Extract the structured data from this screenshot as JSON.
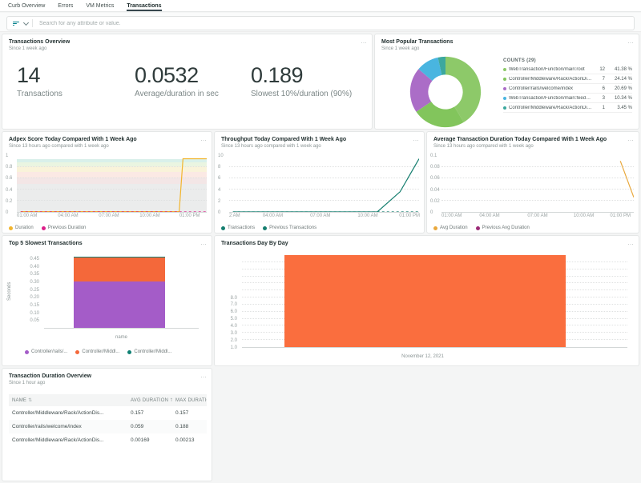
{
  "ui": {
    "menu_icon": "…"
  },
  "tabs": {
    "items": [
      {
        "label": "Curb Overview",
        "active": false
      },
      {
        "label": "Errors",
        "active": false
      },
      {
        "label": "VM Metrics",
        "active": false
      },
      {
        "label": "Transactions",
        "active": true
      }
    ]
  },
  "search": {
    "placeholder": "Search for any attribute or value."
  },
  "panels": {
    "overview": {
      "title": "Transactions Overview",
      "subtitle": "Since 1 week ago",
      "billboards": [
        {
          "value": "14",
          "label": "Transactions"
        },
        {
          "value": "0.0532",
          "label": "Average/duration in sec"
        },
        {
          "value": "0.189",
          "label": "Slowest 10%/duration (90%)"
        }
      ]
    },
    "popular": {
      "title": "Most Popular Transactions",
      "subtitle": "Since 1 week ago"
    },
    "apdex": {
      "title": "Adpex Score Today Compared With 1 Week Ago",
      "subtitle": "Since 13 hours ago compared with 1 week ago"
    },
    "throughput": {
      "title": "Throughput Today Compared With 1 Week Ago",
      "subtitle": "Since 13 hours ago compared with 1 week ago"
    },
    "avgdur": {
      "title": "Average Transaction Duration Today Compared With 1 Week Ago",
      "subtitle": "Since 13 hours ago compared with 1 week ago"
    },
    "top5": {
      "title": "Top 5 Slowest Transactions"
    },
    "daybyday": {
      "title": "Transactions Day By Day"
    },
    "table": {
      "title": "Transaction Duration Overview",
      "subtitle": "Since 1 hour ago"
    }
  },
  "chart_data": [
    {
      "id": "popular",
      "type": "pie",
      "title": "Most Popular Transactions",
      "legend_header": "COUNTS (29)",
      "inner_ratio": 0.49,
      "slices": [
        {
          "label": "WebTransaction/Function/main:root",
          "count": "12",
          "pct": "41.38 %",
          "value": 41.38,
          "color": "#8dc969"
        },
        {
          "label": "Controller/Middleware/Rack/ActionDis...",
          "count": "7",
          "pct": "24.14 %",
          "value": 24.14,
          "color": "#82c55c"
        },
        {
          "label": "Controller/rails/welcome/index",
          "count": "6",
          "pct": "20.69 %",
          "value": 20.69,
          "color": "#ab6dc7"
        },
        {
          "label": "WebTransaction/Function/main:feedpa...",
          "count": "3",
          "pct": "10.34 %",
          "value": 10.34,
          "color": "#49b5e0"
        },
        {
          "label": "Controller/Middleware/Rack/ActionDis...",
          "count": "1",
          "pct": "3.45 %",
          "value": 3.45,
          "color": "#3ca89e"
        }
      ]
    },
    {
      "id": "apdex",
      "type": "line",
      "title": "Adpex Score Today Compared With 1 Week Ago",
      "ylim": [
        0,
        1
      ],
      "yticks": [
        0,
        0.2,
        0.4,
        0.6,
        0.8,
        1
      ],
      "ytick_labels": [
        "0",
        "0.2",
        "0.4",
        "0.6",
        "0.8",
        "1"
      ],
      "x_ticks": [
        {
          "pos": 0.0,
          "label": "01:00 AM"
        },
        {
          "pos": 0.27,
          "label": "04:00 AM"
        },
        {
          "pos": 0.485,
          "label": "07:00 AM"
        },
        {
          "pos": 0.7,
          "label": "10:00 AM"
        },
        {
          "pos": 0.91,
          "label": "01:00 PM"
        }
      ],
      "bands": [
        {
          "from": 0.0,
          "to": 0.5,
          "color": "#ebecec"
        },
        {
          "from": 0.5,
          "to": 0.62,
          "color": "#f3e6e6"
        },
        {
          "from": 0.62,
          "to": 0.72,
          "color": "#fbe9e4"
        },
        {
          "from": 0.72,
          "to": 0.82,
          "color": "#f9f3da"
        },
        {
          "from": 0.82,
          "to": 0.89,
          "color": "#eaf5e1"
        },
        {
          "from": 0.89,
          "to": 0.95,
          "color": "#d9f0ea"
        }
      ],
      "series": [
        {
          "name": "Duration",
          "color": "#f2b52e",
          "dash": false,
          "points": [
            [
              0.02,
              0.005
            ],
            [
              0.855,
              0.005
            ],
            [
              0.875,
              0.95
            ],
            [
              1,
              0.95
            ]
          ]
        },
        {
          "name": "Previous Duration",
          "color": "#dd1e8a",
          "dash": true,
          "points": [
            [
              0.02,
              0
            ],
            [
              1,
              0
            ]
          ]
        }
      ]
    },
    {
      "id": "throughput",
      "type": "line",
      "title": "Throughput Today Compared With 1 Week Ago",
      "ylim": [
        0,
        10
      ],
      "yticks": [
        0,
        2,
        4,
        6,
        8,
        10
      ],
      "ytick_labels": [
        "0",
        "2",
        "4",
        "6",
        "8",
        "10"
      ],
      "x_ticks": [
        {
          "pos": 0.0,
          "label": "2 AM"
        },
        {
          "pos": 0.23,
          "label": "04:00 AM"
        },
        {
          "pos": 0.48,
          "label": "07:00 AM"
        },
        {
          "pos": 0.73,
          "label": "10:00 AM"
        },
        {
          "pos": 0.95,
          "label": "01:00 PM"
        }
      ],
      "bands": [],
      "series": [
        {
          "name": "Transactions",
          "color": "#157e6f",
          "dash": false,
          "points": [
            [
              0.02,
              0
            ],
            [
              0.78,
              0
            ],
            [
              0.9,
              3.6
            ],
            [
              1,
              9.5
            ]
          ]
        },
        {
          "name": "Previous Transactions",
          "color": "#157e6f",
          "dash": true,
          "points": [
            [
              0.02,
              0
            ],
            [
              1,
              0
            ]
          ]
        }
      ]
    },
    {
      "id": "avgdur",
      "type": "line",
      "title": "Average Transaction Duration Today Compared With 1 Week Ago",
      "ylim": [
        0,
        0.1
      ],
      "yticks": [
        0,
        0.02,
        0.04,
        0.06,
        0.08,
        0.1
      ],
      "ytick_labels": [
        "0",
        "0.02",
        "0.04",
        "0.06",
        "0.08",
        "0.1"
      ],
      "x_ticks": [
        {
          "pos": 0.0,
          "label": "01:00 AM"
        },
        {
          "pos": 0.25,
          "label": "04:00 AM"
        },
        {
          "pos": 0.5,
          "label": "07:00 AM"
        },
        {
          "pos": 0.74,
          "label": "10:00 AM"
        },
        {
          "pos": 0.93,
          "label": "01:00 PM"
        }
      ],
      "bands": [],
      "series": [
        {
          "name": "Avg Duration",
          "color": "#e9a83c",
          "dash": false,
          "points": [
            [
              0.93,
              0.091
            ],
            [
              1,
              0.026
            ]
          ]
        },
        {
          "name": "Previous Avg Duration",
          "color": "#9c2b77",
          "dash": true,
          "points": []
        }
      ]
    },
    {
      "id": "top5",
      "type": "bar",
      "stacked": true,
      "title": "Top 5 Slowest Transactions",
      "ylabel": "Seconds",
      "xlabel": "name",
      "ylim": [
        0,
        0.4653
      ],
      "yticks": [
        0.05,
        0.1,
        0.15,
        0.2,
        0.25,
        0.3,
        0.35,
        0.4,
        0.45
      ],
      "ytick_labels": [
        "0.05",
        "0.10",
        "0.15",
        "0.20",
        "0.25",
        "0.30",
        "0.35",
        "0.40",
        "0.45"
      ],
      "bar_span": [
        0.19,
        0.78
      ],
      "segments": [
        {
          "name": "Controller/rails/...",
          "value": 0.305,
          "color": "#a45cc8"
        },
        {
          "name": "Controller/Middl...",
          "value": 0.155,
          "color": "#f4683a"
        },
        {
          "name": "Controller/Middl...",
          "value": 0.0053,
          "color": "#108174"
        }
      ]
    },
    {
      "id": "daybyday",
      "type": "bar",
      "title": "Transactions Day By Day",
      "categories": [
        "November 12, 2021"
      ],
      "values": [
        14
      ],
      "color": "#fa6e3e",
      "ylim": [
        1,
        14
      ],
      "grid_step": 1,
      "ytick_labels": [
        "1.0",
        "2.0",
        "3.0",
        "4.0",
        "5.0",
        "6.0",
        "7.0",
        "8.0"
      ],
      "bar_span": [
        0.11,
        0.84
      ],
      "xlabel_pos": 0.47
    },
    {
      "id": "duration_table",
      "type": "table",
      "title": "Transaction Duration Overview",
      "columns": [
        "NAME",
        "AVG DURATION",
        "MAX DURATION",
        "MIN DURATION"
      ],
      "rows": [
        [
          "Controller/Middleware/Rack/ActionDis...",
          "0.157",
          "0.157",
          "0.157"
        ],
        [
          "Controller/rails/welcome/index",
          "0.059",
          "0.188",
          "0.00942"
        ],
        [
          "Controller/Middleware/Rack/ActionDis...",
          "0.00169",
          "0.00213",
          "0.00142"
        ]
      ]
    }
  ]
}
